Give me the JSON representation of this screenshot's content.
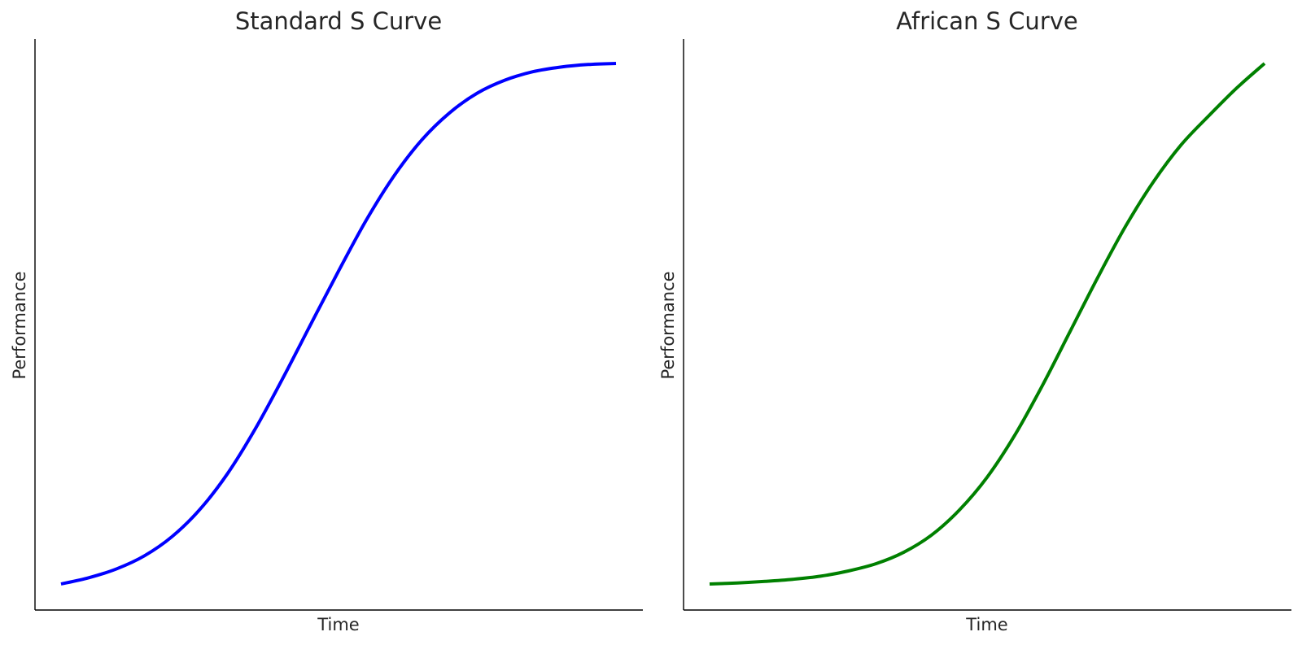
{
  "chart_data": [
    {
      "type": "line",
      "title": "Standard S Curve",
      "xlabel": "Time",
      "ylabel": "Performance",
      "xlim": [
        0,
        10
      ],
      "ylim": [
        0,
        1
      ],
      "grid": false,
      "series": [
        {
          "color": "#0000ff",
          "x": [
            0,
            0.5,
            1,
            1.5,
            2,
            2.5,
            3,
            3.5,
            4,
            4.5,
            5,
            5.5,
            6,
            6.5,
            7,
            7.5,
            8,
            8.5,
            9,
            9.5,
            10
          ],
          "y": [
            0.0,
            0.012,
            0.029,
            0.054,
            0.091,
            0.143,
            0.212,
            0.298,
            0.396,
            0.499,
            0.601,
            0.699,
            0.784,
            0.853,
            0.905,
            0.943,
            0.968,
            0.984,
            0.993,
            0.998,
            1.0
          ]
        }
      ]
    },
    {
      "type": "line",
      "title": "African S Curve",
      "xlabel": "Time",
      "ylabel": "Performance",
      "xlim": [
        0,
        10
      ],
      "ylim": [
        0,
        1
      ],
      "grid": false,
      "series": [
        {
          "color": "#008000",
          "x": [
            0,
            0.5,
            1,
            1.5,
            2,
            2.5,
            3,
            3.5,
            4,
            4.5,
            5,
            5.5,
            6,
            6.5,
            7,
            7.5,
            8,
            8.5,
            9,
            9.5,
            10
          ],
          "y": [
            0.0,
            0.002,
            0.005,
            0.009,
            0.015,
            0.025,
            0.039,
            0.061,
            0.094,
            0.142,
            0.205,
            0.286,
            0.382,
            0.486,
            0.59,
            0.688,
            0.773,
            0.844,
            0.9,
            0.953,
            1.0
          ]
        }
      ]
    }
  ]
}
